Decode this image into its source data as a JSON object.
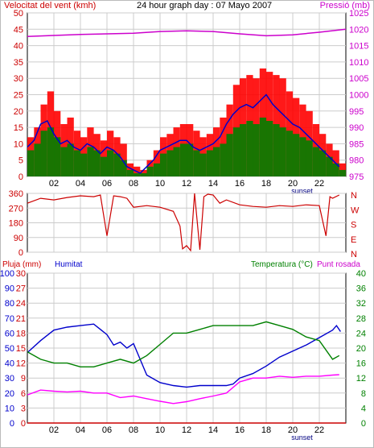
{
  "chart_data": [
    {
      "type": "line",
      "title": "24 hour graph day : 07 Mayo 2007",
      "ylabel_left": "Velocitat del vent (kmh)",
      "ylabel_right": "Pressió (mb)",
      "x_ticks": [
        "02",
        "04",
        "06",
        "08",
        "10",
        "12",
        "14",
        "16",
        "18",
        "20",
        "22"
      ],
      "x_sublabel": "sunset",
      "x_range_hours": [
        0,
        24
      ],
      "ylim_left": [
        0,
        50
      ],
      "yticks_left": [
        0,
        5,
        10,
        15,
        20,
        25,
        30,
        35,
        40,
        45,
        50
      ],
      "ylim_right": [
        975,
        1025
      ],
      "yticks_right": [
        975,
        980,
        985,
        990,
        995,
        1000,
        1005,
        1010,
        1015,
        1020,
        1025
      ],
      "grid": true,
      "series": [
        {
          "name": "Gust",
          "color": "#ff0000",
          "axis": "left",
          "style": "bar",
          "x": [
            0,
            0.5,
            1,
            1.5,
            2,
            2.5,
            3,
            3.5,
            4,
            4.5,
            5,
            5.5,
            6,
            6.5,
            7,
            7.5,
            8,
            8.5,
            9,
            9.5,
            10,
            10.5,
            11,
            11.5,
            12,
            12.5,
            13,
            13.5,
            14,
            14.5,
            15,
            15.5,
            16,
            16.5,
            17,
            17.5,
            18,
            18.5,
            19,
            19.5,
            20,
            20.5,
            21,
            21.5,
            22,
            22.5,
            23,
            23.5
          ],
          "values": [
            12,
            15,
            22,
            26,
            20,
            16,
            18,
            14,
            12,
            15,
            13,
            11,
            14,
            12,
            10,
            4,
            3,
            2,
            5,
            8,
            12,
            13,
            15,
            16,
            16,
            14,
            12,
            13,
            15,
            18,
            22,
            28,
            30,
            31,
            30,
            33,
            32,
            31,
            30,
            26,
            24,
            22,
            20,
            16,
            13,
            10,
            8,
            4
          ]
        },
        {
          "name": "Direction",
          "color": "#008000",
          "axis": "left",
          "style": "bar",
          "x": [
            0,
            0.5,
            1,
            1.5,
            2,
            2.5,
            3,
            3.5,
            4,
            4.5,
            5,
            5.5,
            6,
            6.5,
            7,
            7.5,
            8,
            8.5,
            9,
            9.5,
            10,
            10.5,
            11,
            11.5,
            12,
            12.5,
            13,
            13.5,
            14,
            14.5,
            15,
            15.5,
            16,
            16.5,
            17,
            17.5,
            18,
            18.5,
            19,
            19.5,
            20,
            20.5,
            21,
            21.5,
            22,
            22.5,
            23,
            23.5
          ],
          "values": [
            8,
            10,
            14,
            15,
            12,
            9,
            10,
            8,
            7,
            9,
            8,
            6,
            8,
            7,
            5,
            2,
            1,
            1,
            3,
            4,
            7,
            8,
            9,
            10,
            10,
            8,
            7,
            8,
            9,
            10,
            13,
            15,
            16,
            17,
            16,
            18,
            17,
            16,
            15,
            14,
            13,
            12,
            11,
            9,
            8,
            6,
            4,
            2
          ]
        },
        {
          "name": "Velocitat mitjana",
          "color": "#0000cc",
          "axis": "left",
          "style": "line",
          "x": [
            0,
            0.5,
            1,
            1.5,
            2,
            2.5,
            3,
            3.5,
            4,
            4.5,
            5,
            5.5,
            6,
            6.5,
            7,
            7.5,
            8,
            8.5,
            9,
            9.5,
            10,
            10.5,
            11,
            11.5,
            12,
            12.5,
            13,
            13.5,
            14,
            14.5,
            15,
            15.5,
            16,
            16.5,
            17,
            17.5,
            18,
            18.5,
            19,
            19.5,
            20,
            20.5,
            21,
            21.5,
            22,
            22.5,
            23,
            23.5
          ],
          "values": [
            9,
            11,
            16,
            17,
            13,
            10,
            11,
            9,
            8,
            10,
            9,
            7,
            9,
            8,
            6,
            3,
            2,
            1,
            3,
            5,
            8,
            9,
            10,
            11,
            11,
            9,
            8,
            9,
            10,
            12,
            16,
            19,
            21,
            22,
            21,
            23,
            25,
            22,
            20,
            18,
            16,
            15,
            13,
            11,
            9,
            7,
            5,
            3
          ]
        },
        {
          "name": "Pressió",
          "color": "#cc00cc",
          "axis": "right",
          "style": "line",
          "x": [
            0,
            2,
            4,
            6,
            8,
            10,
            12,
            14,
            16,
            18,
            20,
            22,
            24
          ],
          "values": [
            1017.8,
            1018.1,
            1018.4,
            1018.6,
            1018.8,
            1019.3,
            1019.5,
            1019.3,
            1018.6,
            1018.0,
            1018.3,
            1019.1,
            1020.0
          ]
        }
      ]
    },
    {
      "type": "line",
      "title": "",
      "ylabel_right": "N W S E N",
      "compass": [
        "N",
        "W",
        "S",
        "E",
        "N"
      ],
      "ylim": [
        0,
        360
      ],
      "yticks": [
        0,
        90,
        180,
        270,
        360
      ],
      "x_ticks": [],
      "grid": true,
      "series": [
        {
          "name": "Direcció del vent",
          "color": "#cc0000",
          "x": [
            0,
            1,
            2,
            3,
            4,
            5,
            5.5,
            6,
            6.5,
            7,
            7.5,
            8,
            9,
            10,
            11,
            11.5,
            11.7,
            12,
            12.3,
            12.6,
            13,
            13.3,
            13.6,
            14,
            14.5,
            15,
            16,
            17,
            18,
            19,
            20,
            21,
            22,
            22.5,
            22.8,
            23,
            23.5
          ],
          "values": [
            300,
            330,
            320,
            335,
            345,
            340,
            350,
            100,
            345,
            340,
            330,
            275,
            285,
            275,
            250,
            160,
            20,
            40,
            10,
            360,
            15,
            340,
            355,
            350,
            300,
            320,
            290,
            280,
            275,
            285,
            280,
            290,
            285,
            100,
            340,
            330,
            350
          ]
        }
      ]
    },
    {
      "type": "line",
      "title": "",
      "ylabel_left_1": "Pluja (mm)",
      "ylabel_left_2": "Humitat",
      "ylabel_right": "Temperatura (°C)",
      "ylabel_right_2": "Punt rosada",
      "x_ticks": [
        "02",
        "04",
        "06",
        "08",
        "10",
        "12",
        "14",
        "16",
        "18",
        "20",
        "22"
      ],
      "x_sublabel": "sunset",
      "ylim_rain": [
        0,
        30
      ],
      "yticks_rain": [
        0,
        3,
        6,
        9,
        12,
        15,
        18,
        21,
        24,
        27,
        30
      ],
      "ylim_humidity": [
        0,
        100
      ],
      "yticks_humidity": [
        0,
        10,
        20,
        30,
        40,
        50,
        60,
        70,
        80,
        90,
        100
      ],
      "ylim_temp": [
        0,
        40
      ],
      "yticks_temp": [
        0,
        4,
        8,
        12,
        16,
        20,
        24,
        28,
        32,
        36,
        40
      ],
      "grid": true,
      "series": [
        {
          "name": "Humitat",
          "color": "#0000cc",
          "axis": "humidity",
          "x": [
            0,
            1,
            2,
            3,
            4,
            5,
            6,
            6.5,
            7,
            7.5,
            8,
            9,
            10,
            11,
            12,
            13,
            14,
            15,
            15.5,
            16,
            17,
            18,
            19,
            20,
            21,
            22,
            23,
            23.3,
            23.6
          ],
          "values": [
            47,
            55,
            62,
            64,
            65,
            66,
            59,
            52,
            54,
            50,
            53,
            32,
            27,
            25,
            24,
            25,
            25,
            25,
            26,
            30,
            33,
            38,
            44,
            48,
            52,
            57,
            62,
            65,
            61
          ]
        },
        {
          "name": "Temperatura",
          "color": "#008000",
          "axis": "temp",
          "x": [
            0,
            1,
            2,
            3,
            4,
            5,
            6,
            7,
            8,
            9,
            10,
            11,
            12,
            13,
            14,
            15,
            16,
            17,
            18,
            19,
            20,
            21,
            22,
            23,
            23.5
          ],
          "values": [
            19,
            17,
            16,
            16,
            15,
            15,
            16,
            17,
            16,
            18,
            21,
            24,
            24,
            25,
            26,
            26,
            26,
            26,
            27,
            26,
            25,
            23,
            22,
            17,
            18
          ]
        },
        {
          "name": "Punt rosada",
          "color": "#ff00ff",
          "axis": "temp",
          "x": [
            0,
            1,
            2,
            3,
            4,
            5,
            6,
            7,
            8,
            9,
            10,
            11,
            12,
            13,
            14,
            15,
            16,
            17,
            18,
            19,
            20,
            21,
            22,
            23,
            23.5
          ],
          "values": [
            7.5,
            8.8,
            8.5,
            8.3,
            8.5,
            8,
            8,
            6.8,
            7.2,
            6.5,
            5.8,
            5.2,
            5.7,
            6.5,
            7.2,
            8,
            11,
            12,
            12,
            12.5,
            12.2,
            12.5,
            12.5,
            12.8,
            12.9
          ]
        },
        {
          "name": "Pluja",
          "color": "#cc0000",
          "axis": "rain",
          "x": [
            0,
            24
          ],
          "values": [
            0,
            0
          ]
        }
      ]
    }
  ]
}
